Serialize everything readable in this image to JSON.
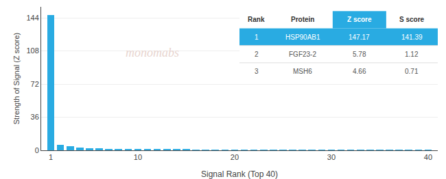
{
  "chart_data": {
    "type": "bar",
    "x": [
      1,
      2,
      3,
      4,
      5,
      6,
      7,
      8,
      9,
      10,
      11,
      12,
      13,
      14,
      15,
      16,
      17,
      18,
      19,
      20,
      21,
      22,
      23,
      24,
      25,
      26,
      27,
      28,
      29,
      30,
      31,
      32,
      33,
      34,
      35,
      36,
      37,
      38,
      39,
      40
    ],
    "values": [
      147.17,
      5.78,
      4.66,
      3.2,
      2.5,
      2.0,
      1.7,
      1.5,
      1.3,
      1.1,
      1.0,
      0.9,
      0.85,
      0.8,
      0.75,
      0.7,
      0.65,
      0.62,
      0.58,
      0.55,
      0.52,
      0.5,
      0.48,
      0.46,
      0.44,
      0.42,
      0.4,
      0.38,
      0.36,
      0.34,
      0.32,
      0.3,
      0.28,
      0.26,
      0.24,
      0.22,
      0.2,
      0.18,
      0.16,
      0.14
    ],
    "color": "#29ABE2",
    "xlabel": "Signal Rank (Top 40)",
    "ylabel": "Strength of Signal (Z score)",
    "xlim": [
      0,
      41
    ],
    "ylim": [
      0,
      156
    ],
    "xticks": [
      1,
      10,
      20,
      30,
      40
    ],
    "yticks": [
      0,
      36,
      72,
      108,
      144
    ],
    "grid": true,
    "annotations": [
      {
        "text": "monomabs"
      }
    ],
    "table": {
      "headers": [
        "Rank",
        "Protein",
        "Z score",
        "S score"
      ],
      "rows": [
        [
          "1",
          "HSP90AB1",
          "147.17",
          "141.39"
        ],
        [
          "2",
          "FGF23-2",
          "5.78",
          "1.12"
        ],
        [
          "3",
          "MSH6",
          "4.66",
          "0.71"
        ]
      ]
    }
  }
}
